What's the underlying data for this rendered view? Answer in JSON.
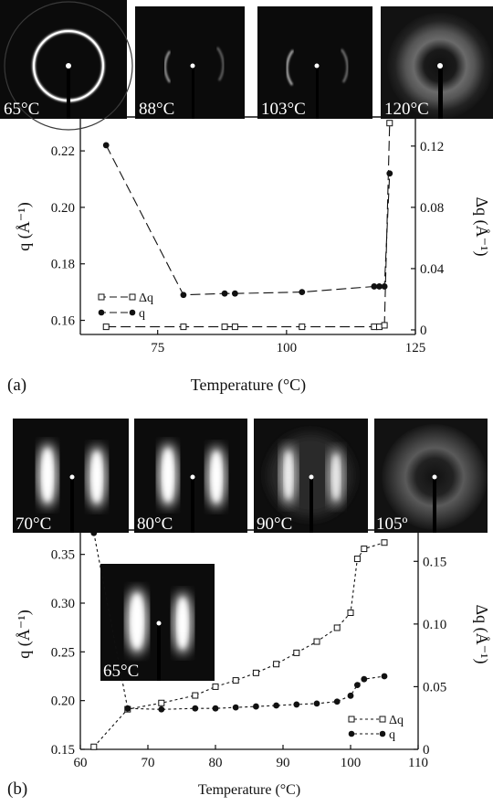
{
  "chart_data": [
    {
      "panel_label": "(a)",
      "type": "line",
      "xlabel": "Temperature (°C)",
      "ylabel_left": "q (Å⁻¹)",
      "ylabel_right": "Δq (Å⁻¹)",
      "xlim": [
        60,
        125
      ],
      "ylim_left": [
        0.155,
        0.232
      ],
      "ylim_right": [
        -0.003,
        0.139
      ],
      "xticks": [
        75,
        100,
        125
      ],
      "yticks_left": [
        0.16,
        0.18,
        0.2,
        0.22
      ],
      "yticks_right": [
        0,
        0.04,
        0.08,
        0.12
      ],
      "ytick_labels_left": [
        "0.16",
        "0.18",
        "0.20",
        "0.22"
      ],
      "ytick_labels_right": [
        "0",
        "0.04",
        "0.08",
        "0.12"
      ],
      "legend_placement": "left",
      "grid": false,
      "series": [
        {
          "name": "Δq",
          "axis": "right",
          "marker": "open-square",
          "line": "long-dash",
          "x": [
            65,
            80,
            88,
            90,
            103,
            117,
            118,
            119,
            120
          ],
          "y": [
            0.002,
            0.002,
            0.002,
            0.002,
            0.002,
            0.002,
            0.002,
            0.003,
            0.135
          ]
        },
        {
          "name": "q",
          "axis": "left",
          "marker": "filled-circle",
          "line": "long-dash",
          "x": [
            65,
            80,
            88,
            90,
            103,
            117,
            118,
            119,
            120
          ],
          "y": [
            0.222,
            0.169,
            0.1695,
            0.1695,
            0.17,
            0.172,
            0.172,
            0.172,
            0.212
          ]
        }
      ],
      "inset_images": [
        {
          "label": "65°C",
          "pattern": "ring-sharp"
        },
        {
          "label": "88°C",
          "pattern": "arcs-faint"
        },
        {
          "label": "103°C",
          "pattern": "arcs-faint"
        },
        {
          "label": "120°C",
          "pattern": "halo-diffuse"
        }
      ]
    },
    {
      "panel_label": "(b)",
      "type": "line",
      "xlabel": "Temperature (°C)",
      "ylabel_left": "q (Å⁻¹)",
      "ylabel_right": "Δq (Å⁻¹)",
      "xlim": [
        60,
        110
      ],
      "ylim_left": [
        0.15,
        0.375
      ],
      "ylim_right": [
        0,
        0.175
      ],
      "xticks": [
        60,
        70,
        80,
        90,
        100,
        110
      ],
      "yticks_left": [
        0.15,
        0.2,
        0.25,
        0.3,
        0.35
      ],
      "yticks_right": [
        0,
        0.05,
        0.1,
        0.15
      ],
      "ytick_labels_left": [
        "0.15",
        "0.20",
        "0.25",
        "0.30",
        "0.35"
      ],
      "ytick_labels_right": [
        "0",
        "0.05",
        "0.10",
        "0.15"
      ],
      "legend_placement": "bottom-right",
      "grid": false,
      "series": [
        {
          "name": "Δq",
          "axis": "right",
          "marker": "open-square",
          "line": "short-dash",
          "x": [
            62,
            67,
            72,
            77,
            80,
            83,
            86,
            89,
            92,
            95,
            98,
            100,
            101,
            102,
            105
          ],
          "y": [
            0.002,
            0.032,
            0.037,
            0.043,
            0.05,
            0.055,
            0.061,
            0.068,
            0.077,
            0.086,
            0.097,
            0.109,
            0.152,
            0.16,
            0.165
          ]
        },
        {
          "name": "q",
          "axis": "left",
          "marker": "filled-circle",
          "line": "short-dash",
          "x": [
            62,
            67,
            72,
            77,
            80,
            83,
            86,
            89,
            92,
            95,
            98,
            100,
            101,
            102,
            105
          ],
          "y": [
            0.372,
            0.192,
            0.191,
            0.192,
            0.192,
            0.193,
            0.194,
            0.195,
            0.196,
            0.197,
            0.199,
            0.205,
            0.216,
            0.222,
            0.225
          ]
        }
      ],
      "inset_images": [
        {
          "label": "70°C",
          "pattern": "lobes"
        },
        {
          "label": "80°C",
          "pattern": "lobes"
        },
        {
          "label": "90°C",
          "pattern": "lobes-dim"
        },
        {
          "label": "105º",
          "pattern": "halo-diffuse"
        },
        {
          "label": "65°C",
          "pattern": "lobes"
        }
      ]
    }
  ],
  "colors": {
    "axis": "#111111",
    "image_bg": "#0b0b0b",
    "marker_open_fill": "#ffffff"
  }
}
